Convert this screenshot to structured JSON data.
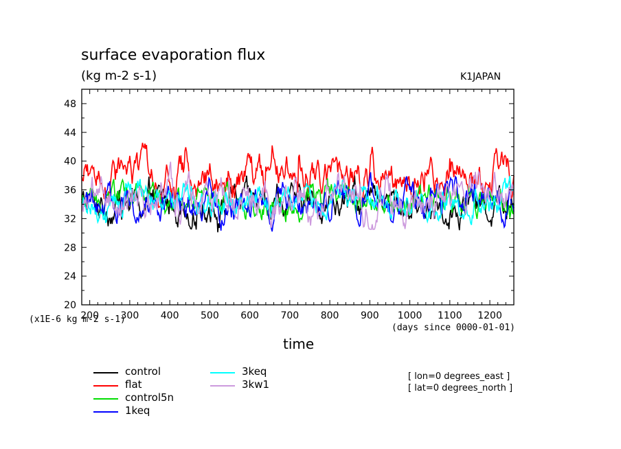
{
  "chart_data": {
    "type": "line",
    "title": "surface evaporation flux",
    "units": "(kg m-2 s-1)",
    "model": "K1JAPAN",
    "xlabel": "time",
    "x_units": "(days since 0000-01-01)",
    "y_scale_note": "(x1E-6 kg m-2 s-1)",
    "xlim": [
      180,
      1260
    ],
    "ylim": [
      20,
      50
    ],
    "x_ticks": [
      200,
      300,
      400,
      500,
      600,
      700,
      800,
      900,
      1000,
      1100,
      1200
    ],
    "y_ticks": [
      20,
      24,
      28,
      32,
      36,
      40,
      44,
      48
    ],
    "annotations": [
      "[ lon=0 degrees_east ]",
      "[ lat=0 degrees_north ]"
    ],
    "series": [
      {
        "name": "control",
        "color": "#000000",
        "mean": 34.0,
        "min": 29.2,
        "max": 38.0
      },
      {
        "name": "flat",
        "color": "#ff0000",
        "mean": 37.6,
        "min": 33.5,
        "max": 43.5
      },
      {
        "name": "control5n",
        "color": "#00dd00",
        "mean": 34.3,
        "min": 30.3,
        "max": 38.0
      },
      {
        "name": "1keq",
        "color": "#0000ff",
        "mean": 34.2,
        "min": 29.5,
        "max": 38.5
      },
      {
        "name": "3keq",
        "color": "#00ffff",
        "mean": 34.5,
        "min": 30.2,
        "max": 38.0
      },
      {
        "name": "3kw1",
        "color": "#cc99dd",
        "mean": 34.6,
        "min": 30.5,
        "max": 41.2
      }
    ]
  }
}
